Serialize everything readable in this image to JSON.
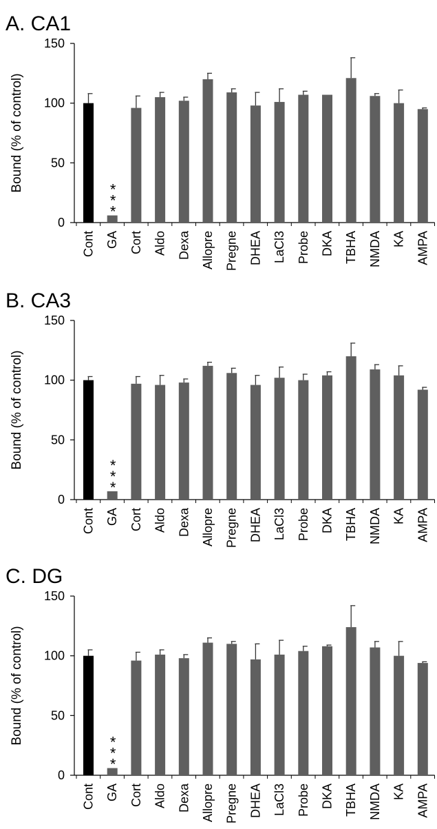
{
  "colors": {
    "control": "#000000",
    "treatment": "#5f5f5f"
  },
  "chart_data": [
    {
      "type": "bar",
      "title": "A. CA1",
      "ylabel": "Bound (% of control)",
      "xlabel": "",
      "ylim": [
        0,
        150
      ],
      "yticks": [
        0,
        50,
        100,
        150
      ],
      "grid": false,
      "categories": [
        "Cont",
        "GA",
        "Cort",
        "Aldo",
        "Dexa",
        "Allopre",
        "Pregne",
        "DHEA",
        "LaCl3",
        "Probe",
        "DKA",
        "TBHA",
        "NMDA",
        "KA",
        "AMPA"
      ],
      "values": [
        100,
        6,
        96,
        105,
        102,
        120,
        109,
        98,
        101,
        107,
        107,
        121,
        106,
        100,
        95
      ],
      "errors": [
        8,
        0.5,
        10,
        4,
        3,
        5,
        3,
        11,
        11,
        3,
        0.5,
        17,
        2,
        11,
        1
      ],
      "annotations": [
        {
          "category": "GA",
          "text": "***"
        }
      ]
    },
    {
      "type": "bar",
      "title": "B. CA3",
      "ylabel": "Bound (% of control)",
      "xlabel": "",
      "ylim": [
        0,
        150
      ],
      "yticks": [
        0,
        50,
        100,
        150
      ],
      "grid": false,
      "categories": [
        "Cont",
        "GA",
        "Cort",
        "Aldo",
        "Dexa",
        "Allopre",
        "Pregne",
        "DHEA",
        "LaCl3",
        "Probe",
        "DKA",
        "TBHA",
        "NMDA",
        "KA",
        "AMPA"
      ],
      "values": [
        100,
        7,
        97,
        96,
        98,
        112,
        106,
        96,
        102,
        100,
        104,
        120,
        109,
        104,
        92
      ],
      "errors": [
        3,
        0.5,
        6,
        8,
        3,
        3,
        4,
        8,
        9,
        5,
        3,
        11,
        4,
        8,
        2
      ],
      "annotations": [
        {
          "category": "GA",
          "text": "***"
        }
      ]
    },
    {
      "type": "bar",
      "title": "C. DG",
      "ylabel": "Bound (% of control)",
      "xlabel": "",
      "ylim": [
        0,
        150
      ],
      "yticks": [
        0,
        50,
        100,
        150
      ],
      "grid": false,
      "categories": [
        "Cont",
        "GA",
        "Cort",
        "Aldo",
        "Dexa",
        "Allopre",
        "Pregne",
        "DHEA",
        "LaCl3",
        "Probe",
        "DKA",
        "TBHA",
        "NMDA",
        "KA",
        "AMPA"
      ],
      "values": [
        100,
        6,
        96,
        101,
        98,
        111,
        110,
        97,
        101,
        104,
        108,
        124,
        107,
        100,
        94
      ],
      "errors": [
        5,
        0.5,
        7,
        4,
        3,
        4,
        2,
        13,
        12,
        4,
        1,
        18,
        5,
        12,
        1
      ],
      "annotations": [
        {
          "category": "GA",
          "text": "***"
        }
      ]
    }
  ]
}
